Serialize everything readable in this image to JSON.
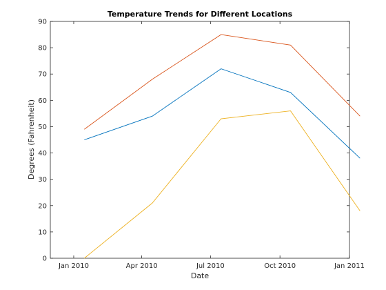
{
  "chart_data": {
    "type": "line",
    "title": "Temperature Trends for Different Locations",
    "xlabel": "Date",
    "ylabel": "Degrees (Fahrenheit)",
    "x": [
      "2010-01-15",
      "2010-04-15",
      "2010-07-15",
      "2010-10-15",
      "2011-01-15"
    ],
    "xlim": [
      "2009-12-01",
      "2011-01-01"
    ],
    "ylim": [
      0,
      90
    ],
    "yticks": [
      0,
      10,
      20,
      30,
      40,
      50,
      60,
      70,
      80,
      90
    ],
    "xticks": [
      {
        "date": "2010-01-01",
        "label": "Jan 2010"
      },
      {
        "date": "2010-04-01",
        "label": "Apr 2010"
      },
      {
        "date": "2010-07-01",
        "label": "Jul 2010"
      },
      {
        "date": "2010-10-01",
        "label": "Oct 2010"
      },
      {
        "date": "2011-01-01",
        "label": "Jan 2011"
      }
    ],
    "grid": false,
    "legend": "none",
    "series": [
      {
        "color": "#0072BD",
        "values": [
          45,
          54,
          72,
          63,
          38
        ]
      },
      {
        "color": "#D95319",
        "values": [
          49,
          68,
          85,
          81,
          54
        ]
      },
      {
        "color": "#EDB120",
        "values": [
          0,
          21,
          53,
          56,
          18
        ]
      }
    ]
  }
}
